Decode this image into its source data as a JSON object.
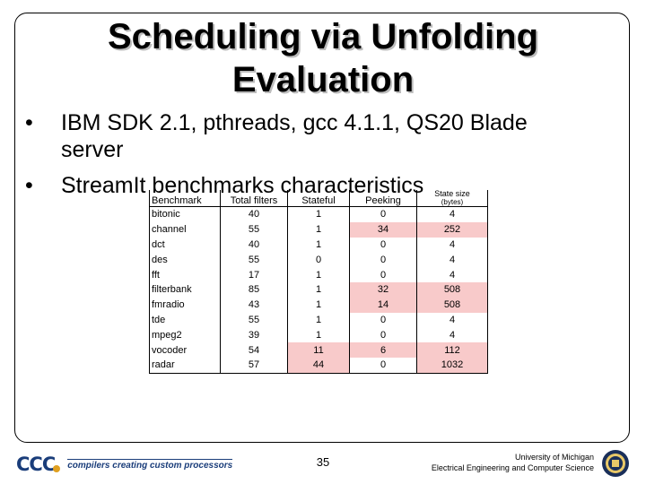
{
  "slide": {
    "title_line1": "Scheduling via Unfolding",
    "title_line2": "Evaluation",
    "bullets": [
      "IBM SDK 2.1, pthreads, gcc 4.1.1, QS20 Blade",
      "server",
      "StreamIt benchmarks characteristics"
    ],
    "page_number": "35",
    "footer_tagline": "compilers creating custom processors",
    "logo_text": "CCC",
    "university_line1": "University of Michigan",
    "university_line2": "Electrical Engineering and Computer Science"
  },
  "table": {
    "headers": {
      "benchmark": "Benchmark",
      "total_filters": "Total filters",
      "stateful": "Stateful",
      "peeking": "Peeking",
      "state_size": "State size",
      "state_size_unit": "(bytes)"
    },
    "highlight_color": "#f8caca",
    "rows": [
      {
        "name": "bitonic",
        "total": "40",
        "stateful": "1",
        "peeking": "0",
        "state": "4"
      },
      {
        "name": "channel",
        "total": "55",
        "stateful": "1",
        "peeking": "34",
        "state": "252"
      },
      {
        "name": "dct",
        "total": "40",
        "stateful": "1",
        "peeking": "0",
        "state": "4"
      },
      {
        "name": "des",
        "total": "55",
        "stateful": "0",
        "peeking": "0",
        "state": "4"
      },
      {
        "name": "fft",
        "total": "17",
        "stateful": "1",
        "peeking": "0",
        "state": "4"
      },
      {
        "name": "filterbank",
        "total": "85",
        "stateful": "1",
        "peeking": "32",
        "state": "508"
      },
      {
        "name": "fmradio",
        "total": "43",
        "stateful": "1",
        "peeking": "14",
        "state": "508"
      },
      {
        "name": "tde",
        "total": "55",
        "stateful": "1",
        "peeking": "0",
        "state": "4"
      },
      {
        "name": "mpeg2",
        "total": "39",
        "stateful": "1",
        "peeking": "0",
        "state": "4"
      },
      {
        "name": "vocoder",
        "total": "54",
        "stateful": "11",
        "peeking": "6",
        "state": "112"
      },
      {
        "name": "radar",
        "total": "57",
        "stateful": "44",
        "peeking": "0",
        "state": "1032"
      }
    ]
  }
}
